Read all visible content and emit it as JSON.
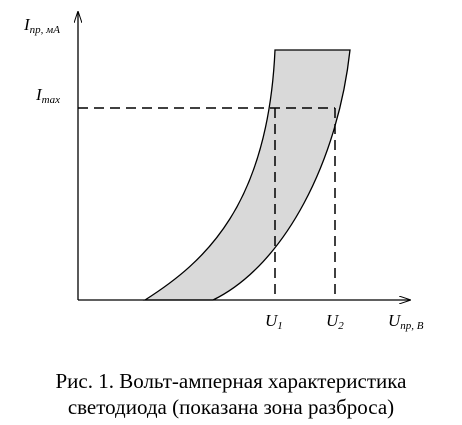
{
  "axes": {
    "y_label": {
      "main": "I",
      "sub": "пр, мА"
    },
    "x_label": {
      "main": "U",
      "sub": "пр, В"
    }
  },
  "marks": {
    "i_max": {
      "main": "I",
      "sub": "max"
    },
    "u1": {
      "main": "U",
      "sub": "1"
    },
    "u2": {
      "main": "U",
      "sub": "2"
    }
  },
  "caption": [
    "Рис. 1. Вольт-амперная характеристика",
    "светодиода (показана зона разброса)"
  ]
}
